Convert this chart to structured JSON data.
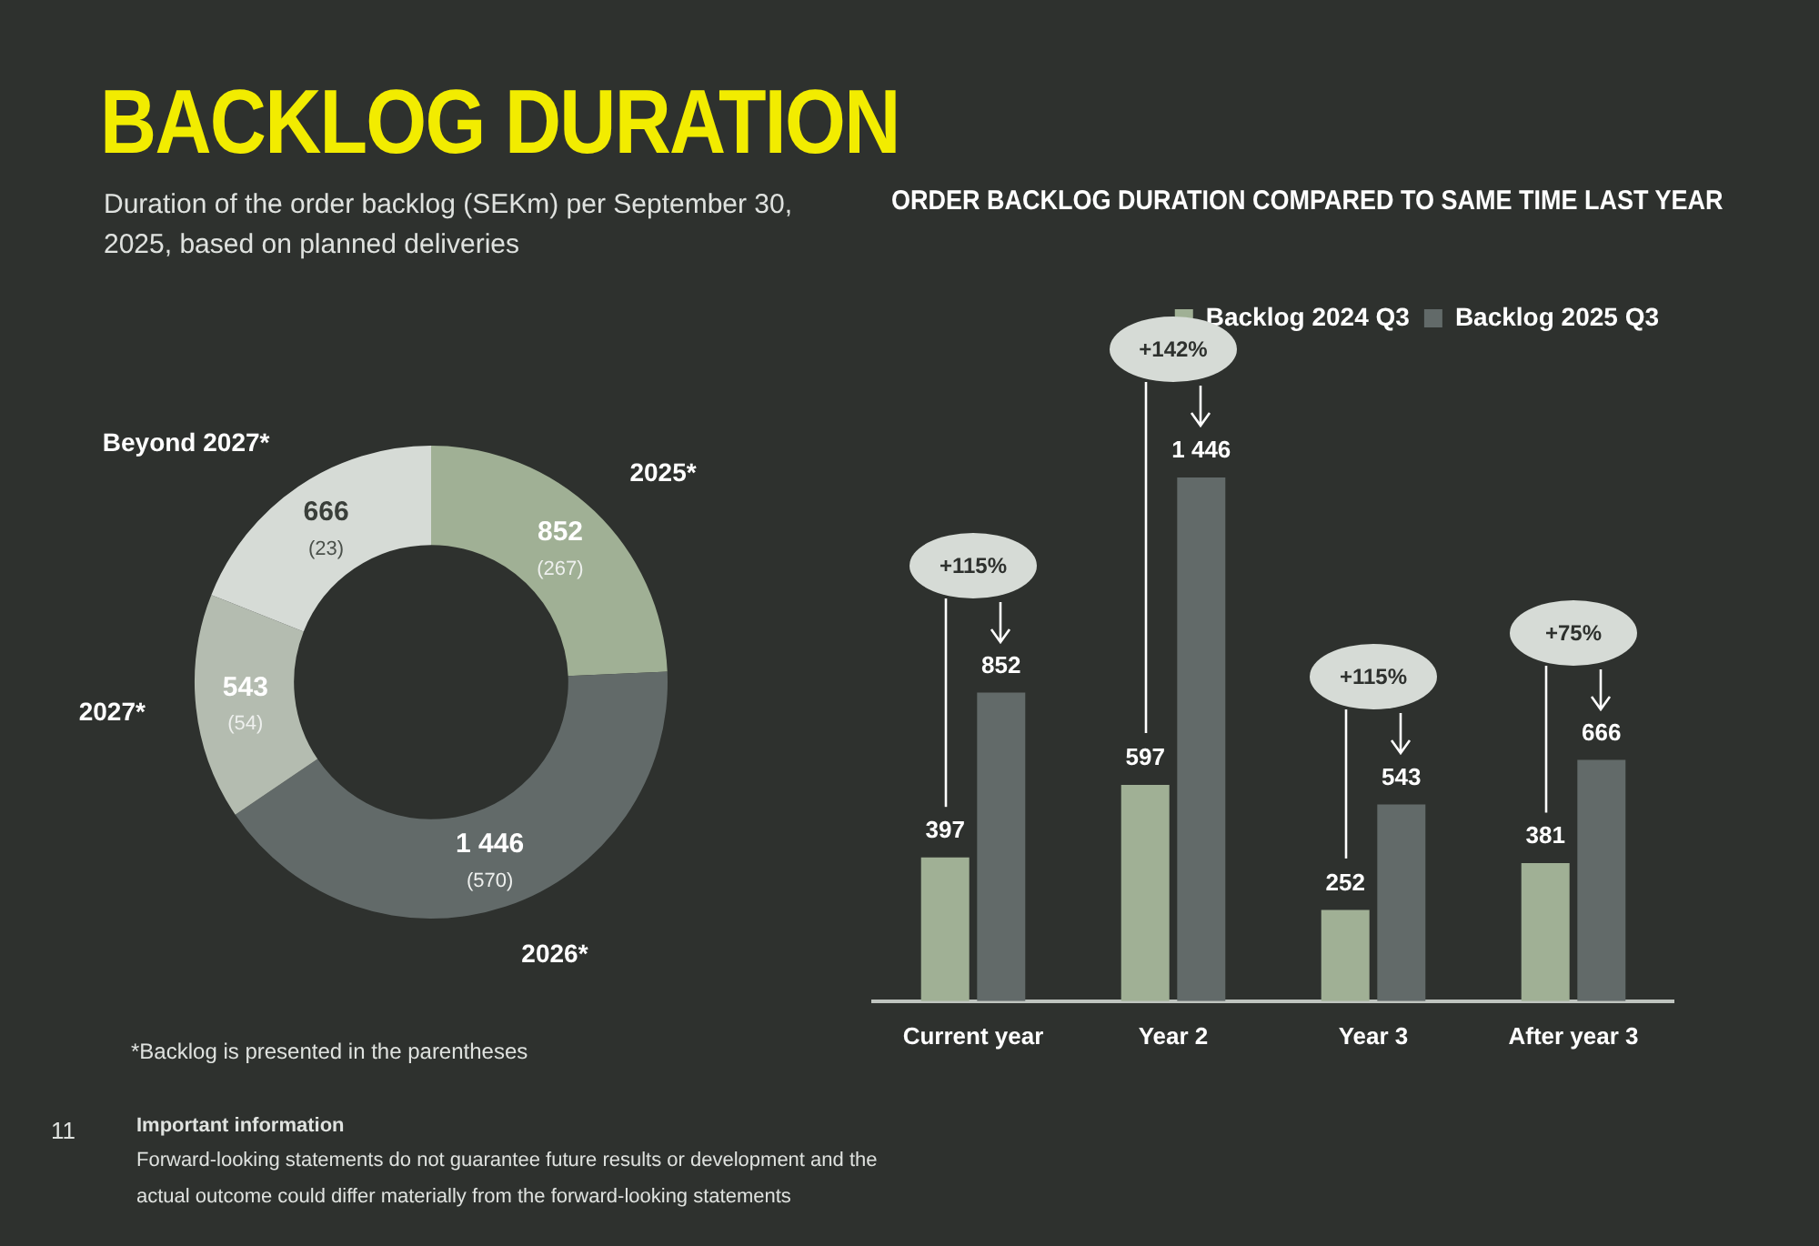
{
  "chart_data": [
    {
      "type": "donut",
      "title": "BACKLOG DURATION",
      "subtitle": "Duration of the order backlog (SEKm) per September 30, 2025, based on planned deliveries",
      "categories": [
        "2025*",
        "2026*",
        "2027*",
        "Beyond 2027*"
      ],
      "values": [
        852,
        1446,
        543,
        666
      ],
      "colors": [
        "#a0b095",
        "#626a69",
        "#b4bcb0",
        "#d6dbd6"
      ],
      "value_labels": [
        "852\n(267)",
        "1 446\n(570)",
        "543\n(54)",
        "666\n(23)"
      ],
      "annotations": [
        "*Backlog is presented in the parentheses",
        "11",
        "Important information",
        "Forward-looking statements do not guarantee future results or development and the actual outcome could differ materially from the forward-looking statements"
      ]
    },
    {
      "type": "bar",
      "title": "ORDER BACKLOG DURATION COMPARED TO SAME TIME LAST YEAR",
      "categories": [
        "Current year",
        "Year 2",
        "Year 3",
        "After year 3"
      ],
      "series": [
        {
          "name": "Backlog 2024 Q3",
          "color": "#a0b095",
          "values": [
            397,
            597,
            252,
            381
          ],
          "value_labels": [
            "397",
            "597",
            "252",
            "381"
          ]
        },
        {
          "name": "Backlog 2025 Q3",
          "color": "#626a69",
          "values": [
            852,
            1446,
            543,
            666
          ],
          "value_labels": [
            "852",
            "1 446",
            "543",
            "666"
          ]
        }
      ],
      "legend": "top right",
      "annotations": [
        "+115%",
        "+142%",
        "+115%",
        "+75%"
      ]
    }
  ]
}
